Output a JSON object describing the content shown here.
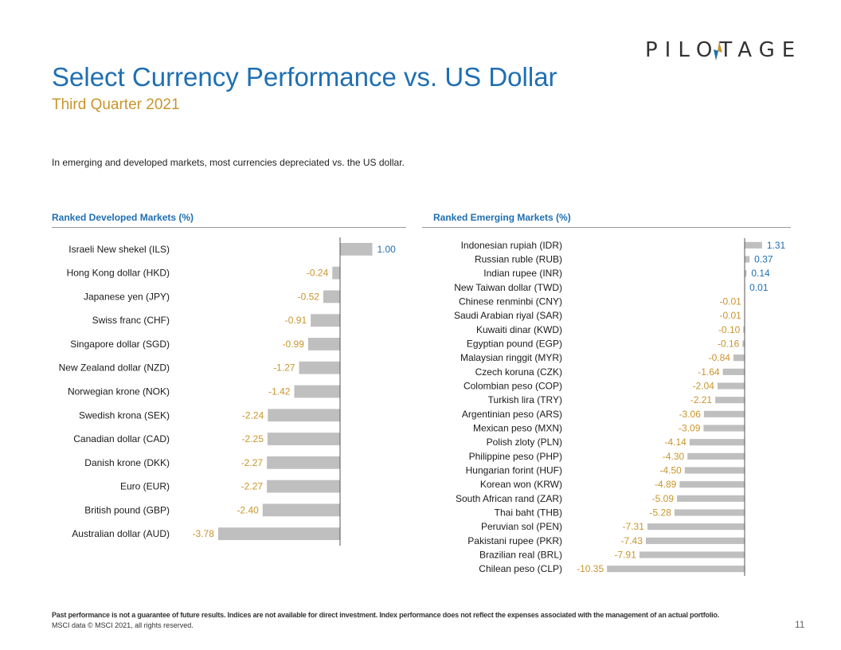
{
  "brand": {
    "logo_text": "PILOTAGE",
    "accent": "#1f6fb2",
    "gold": "#c9952c"
  },
  "header": {
    "title": "Select Currency Performance vs. US Dollar",
    "subtitle": "Third Quarter 2021"
  },
  "intro": "In emerging and developed  markets, most currencies depreciated vs. the US dollar.",
  "footer": {
    "disclaimer": "Past performance is not a guarantee of future results. Indices are not available for direct investment. Index performance does not reflect the expenses associated with the management of an actual portfolio.",
    "source": "MSCI data © MSCI 2021, all rights reserved.",
    "page_number": "11"
  },
  "colors": {
    "bar": "#bfbfbf",
    "positive_label": "#1f6fb2",
    "negative_label": "#c9952c",
    "axis": "#555555"
  },
  "chart_data": [
    {
      "type": "bar",
      "orientation": "horizontal",
      "title": "Ranked Developed Markets (%)",
      "categories": [
        "Israeli New shekel (ILS)",
        "Hong Kong dollar (HKD)",
        "Japanese yen (JPY)",
        "Swiss franc (CHF)",
        "Singapore dollar (SGD)",
        "New Zealand dollar (NZD)",
        "Norwegian krone (NOK)",
        "Swedish krona (SEK)",
        "Canadian dollar (CAD)",
        "Danish krone (DKK)",
        "Euro (EUR)",
        "British pound (GBP)",
        "Australian dollar (AUD)"
      ],
      "values": [
        1.0,
        -0.24,
        -0.52,
        -0.91,
        -0.99,
        -1.27,
        -1.42,
        -2.24,
        -2.25,
        -2.27,
        -2.27,
        -2.4,
        -3.78
      ],
      "labels": [
        "1.00",
        "-0.24",
        "-0.52",
        "-0.91",
        "-0.99",
        "-1.27",
        "-1.42",
        "-2.24",
        "-2.25",
        "-2.27",
        "-2.27",
        "-2.40",
        "-3.78"
      ]
    },
    {
      "type": "bar",
      "orientation": "horizontal",
      "title": "Ranked Emerging Markets (%)",
      "categories": [
        "Indonesian rupiah (IDR)",
        "Russian ruble (RUB)",
        "Indian rupee (INR)",
        "New Taiwan dollar (TWD)",
        "Chinese renminbi (CNY)",
        "Saudi Arabian riyal (SAR)",
        "Kuwaiti dinar (KWD)",
        "Egyptian pound (EGP)",
        "Malaysian ringgit (MYR)",
        "Czech koruna (CZK)",
        "Colombian peso (COP)",
        "Turkish lira (TRY)",
        "Argentinian peso (ARS)",
        "Mexican peso (MXN)",
        "Polish zloty (PLN)",
        "Philippine peso (PHP)",
        "Hungarian forint (HUF)",
        "Korean won (KRW)",
        "South African rand (ZAR)",
        "Thai baht (THB)",
        "Peruvian sol (PEN)",
        "Pakistani rupee (PKR)",
        "Brazilian real (BRL)",
        "Chilean peso (CLP)"
      ],
      "values": [
        1.31,
        0.37,
        0.14,
        0.01,
        -0.01,
        -0.01,
        -0.1,
        -0.16,
        -0.84,
        -1.64,
        -2.04,
        -2.21,
        -3.06,
        -3.09,
        -4.14,
        -4.3,
        -4.5,
        -4.89,
        -5.09,
        -5.28,
        -7.31,
        -7.43,
        -7.91,
        -10.35
      ],
      "labels": [
        "1.31",
        "0.37",
        "0.14",
        "0.01",
        "-0.01",
        "-0.01",
        "-0.10",
        "-0.16",
        "-0.84",
        "-1.64",
        "-2.04",
        "-2.21",
        "-3.06",
        "-3.09",
        "-4.14",
        "-4.30",
        "-4.50",
        "-4.89",
        "-5.09",
        "-5.28",
        "-7.31",
        "-7.43",
        "-7.91",
        "-10.35"
      ]
    }
  ]
}
